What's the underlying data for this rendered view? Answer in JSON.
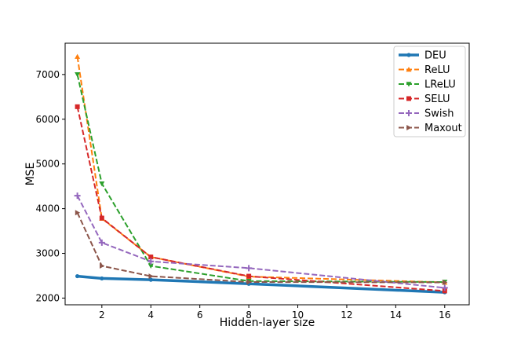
{
  "chart_data": {
    "type": "line",
    "title": "",
    "xlabel": "Hidden-layer size",
    "ylabel": "MSE",
    "xlim": [
      0.5,
      17.0
    ],
    "ylim": [
      1850,
      7700
    ],
    "xticks": [
      2,
      4,
      6,
      8,
      10,
      12,
      14,
      16
    ],
    "yticks": [
      2000,
      3000,
      4000,
      5000,
      6000,
      7000
    ],
    "x": [
      1,
      2,
      4,
      8,
      16
    ],
    "legend_position": "top-right",
    "grid": false,
    "series": [
      {
        "name": "DEU",
        "values": [
          2490,
          2440,
          2410,
          2320,
          2130
        ],
        "color": "#1f77b4",
        "dash": "solid",
        "marker": "dot",
        "width": 3.5
      },
      {
        "name": "ReLU",
        "values": [
          7400,
          3780,
          2920,
          2480,
          2350
        ],
        "color": "#ff7f0e",
        "dash": "dashed",
        "marker": "triangle-up",
        "width": 2
      },
      {
        "name": "LReLU",
        "values": [
          7000,
          4560,
          2720,
          2380,
          2360
        ],
        "color": "#2ca02c",
        "dash": "dashed",
        "marker": "triangle-down",
        "width": 2
      },
      {
        "name": "SELU",
        "values": [
          6280,
          3790,
          2920,
          2490,
          2160
        ],
        "color": "#d62728",
        "dash": "dashed",
        "marker": "square",
        "width": 2
      },
      {
        "name": "Swish",
        "values": [
          4290,
          3240,
          2820,
          2670,
          2230
        ],
        "color": "#9467bd",
        "dash": "dashed",
        "marker": "plus",
        "width": 2
      },
      {
        "name": "Maxout",
        "values": [
          3910,
          2720,
          2490,
          2360,
          2350
        ],
        "color": "#8c564b",
        "dash": "dashed",
        "marker": "triangle-right",
        "width": 2
      }
    ]
  }
}
